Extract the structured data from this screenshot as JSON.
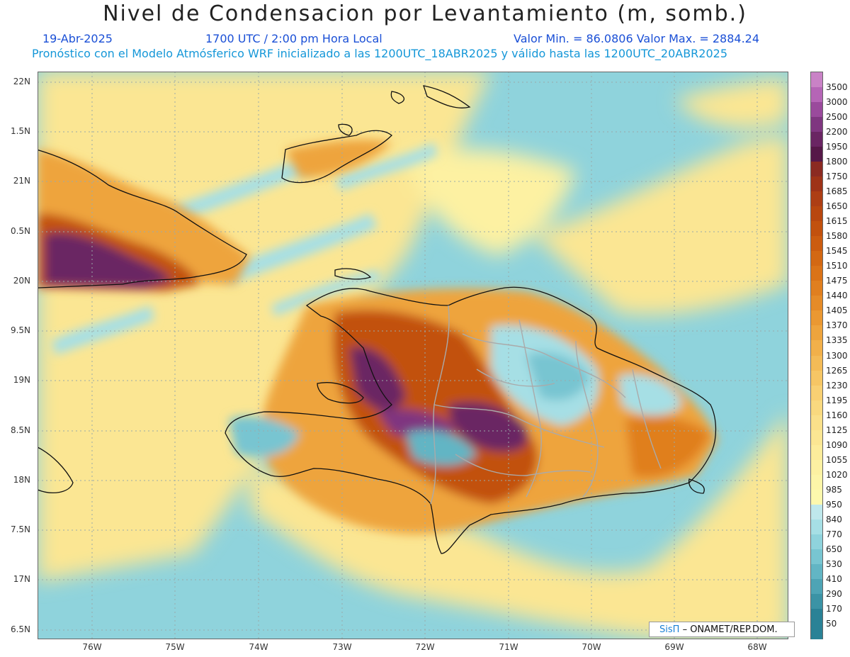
{
  "header": {
    "title": "Nivel de Condensacion por Levantamiento (m, somb.)",
    "date": "19-Abr-2025",
    "time": "1700 UTC / 2:00 pm Hora Local",
    "minmax": "Valor Min. = 86.0806   Valor Max. = 2884.24",
    "description": "Pronóstico con el Modelo Atmósferico WRF inicializado a las 1200UTC_18ABR2025 y válido hasta las  1200UTC_20ABR2025"
  },
  "axes": {
    "lat_labels": [
      "22N",
      "1.5N",
      "21N",
      "0.5N",
      "20N",
      "9.5N",
      "19N",
      "8.5N",
      "18N",
      "7.5N",
      "17N",
      "6.5N"
    ],
    "lon_labels": [
      "76W",
      "75W",
      "74W",
      "73W",
      "72W",
      "71W",
      "70W",
      "69W",
      "68W"
    ]
  },
  "legend": {
    "labels": [
      "3500",
      "3000",
      "2500",
      "2200",
      "1950",
      "1800",
      "1750",
      "1685",
      "1650",
      "1615",
      "1580",
      "1545",
      "1510",
      "1475",
      "1440",
      "1405",
      "1370",
      "1335",
      "1300",
      "1265",
      "1230",
      "1195",
      "1160",
      "1125",
      "1090",
      "1055",
      "1020",
      "985",
      "950",
      "840",
      "770",
      "650",
      "530",
      "410",
      "290",
      "170",
      "50"
    ],
    "colors": [
      "#c982c6",
      "#b565b6",
      "#9a4a9c",
      "#7f3680",
      "#6a2563",
      "#561848",
      "#8b2a22",
      "#9e3318",
      "#ad3e14",
      "#b8470f",
      "#c2510e",
      "#cb5c10",
      "#d36813",
      "#da7318",
      "#e07f1f",
      "#e58b28",
      "#ea9832",
      "#eea43d",
      "#f2b04a",
      "#f4bb57",
      "#f6c665",
      "#f8d073",
      "#f9d97f",
      "#fae08a",
      "#fbe693",
      "#fcec9b",
      "#fdf1a2",
      "#fdf5a8",
      "#fdf8ad",
      "#bfe8ec",
      "#a6dfe5",
      "#8fd3dc",
      "#78c5d1",
      "#62b5c4",
      "#4ea4b5",
      "#3b93a5",
      "#2a8296"
    ]
  },
  "credit": {
    "brand": "SisΠ",
    "text": "– ONAMET/REP.DOM."
  },
  "map_colors": {
    "sea": "#8fd3dc",
    "yellow": "#fbe693",
    "orange": "#eea43d",
    "darkorange": "#c2510e",
    "brown": "#8b2a22",
    "purple": "#6a2563",
    "blue": "#62b5c4"
  }
}
